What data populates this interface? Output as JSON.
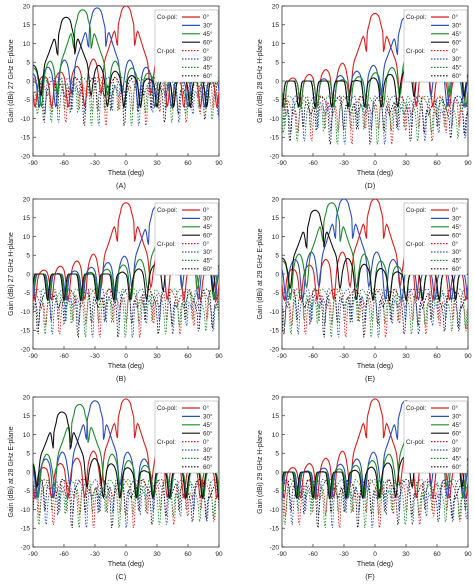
{
  "chart_data": [
    {
      "type": "line",
      "panel_label": "(A)",
      "ylabel": "Gain (dBi) 27 GHz E-plane",
      "xlabel": "Theta (deg)",
      "xlim": [
        -90,
        90
      ],
      "ylim": [
        -20,
        20
      ],
      "xticks": [
        "-90",
        "-60",
        "-30",
        "0",
        "30",
        "60",
        "90"
      ],
      "yticks": [
        "-20",
        "-15",
        "-10",
        "-5",
        "0",
        "5",
        "10",
        "15",
        "20"
      ],
      "legend": {
        "co_label": "Co-pol:",
        "cr_label": "Cr-pol:",
        "entries": [
          "0°",
          "30°",
          "45°",
          "60°"
        ]
      },
      "co_peaks": [
        {
          "x": 0,
          "y": 20
        },
        {
          "x": -28,
          "y": 19.5
        },
        {
          "x": -42,
          "y": 19
        },
        {
          "x": -58,
          "y": 17
        }
      ],
      "cross_level": 0
    },
    {
      "type": "line",
      "panel_label": "(D)",
      "ylabel": "Gain (dBi) 28 GHz H-plane",
      "xlabel": "Theta (deg)",
      "xlim": [
        -90,
        90
      ],
      "ylim": [
        -20,
        20
      ],
      "xticks": [
        "-90",
        "-60",
        "-30",
        "0",
        "30",
        "60",
        "90"
      ],
      "yticks": [
        "-20",
        "-15",
        "-10",
        "-5",
        "0",
        "5",
        "10",
        "15",
        "20"
      ],
      "legend": {
        "co_label": "Co-pol:",
        "cr_label": "Cr-pol:",
        "entries": [
          "0°",
          "30°",
          "45°",
          "60°"
        ]
      },
      "co_peaks": [
        {
          "x": 0,
          "y": 18
        },
        {
          "x": 30,
          "y": 17
        },
        {
          "x": 48,
          "y": 16
        },
        {
          "x": 62,
          "y": 15
        }
      ],
      "cross_level": -5
    },
    {
      "type": "line",
      "panel_label": "(B)",
      "ylabel": "Gain (dBi) 27 GHz H-plane",
      "xlabel": "Theta (deg)",
      "xlim": [
        -90,
        90
      ],
      "ylim": [
        -20,
        20
      ],
      "xticks": [
        "-90",
        "-60",
        "-30",
        "0",
        "30",
        "60",
        "90"
      ],
      "yticks": [
        "-20",
        "-15",
        "-10",
        "-5",
        "0",
        "5",
        "10",
        "15",
        "20"
      ],
      "legend": {
        "co_label": "Co-pol:",
        "cr_label": "Cr-pol:",
        "entries": [
          "0°",
          "30°",
          "45°",
          "60°"
        ]
      },
      "co_peaks": [
        {
          "x": 0,
          "y": 19
        },
        {
          "x": 30,
          "y": 18
        },
        {
          "x": 45,
          "y": 16.5
        },
        {
          "x": 60,
          "y": 14
        }
      ],
      "cross_level": -5
    },
    {
      "type": "line",
      "panel_label": "(E)",
      "ylabel": "Gain (dBi) at 29 GHz E-plane",
      "xlabel": "Theta (deg)",
      "xlim": [
        -90,
        90
      ],
      "ylim": [
        -20,
        20
      ],
      "xticks": [
        "-90",
        "-60",
        "-30",
        "0",
        "30",
        "60",
        "90"
      ],
      "yticks": [
        "-20",
        "-15",
        "-10",
        "-5",
        "0",
        "5",
        "10",
        "15",
        "20"
      ],
      "legend": {
        "co_label": "Co-pol:",
        "cr_label": "Cr-pol:",
        "entries": [
          "0°",
          "30°",
          "45°",
          "60°"
        ]
      },
      "co_peaks": [
        {
          "x": 0,
          "y": 20
        },
        {
          "x": -30,
          "y": 20
        },
        {
          "x": -42,
          "y": 19
        },
        {
          "x": -58,
          "y": 17
        }
      ],
      "cross_level": -5
    },
    {
      "type": "line",
      "panel_label": "(C)",
      "ylabel": "Gain (dBi) at 28 GHz E-plane",
      "xlabel": "Theta (deg)",
      "xlim": [
        -90,
        90
      ],
      "ylim": [
        -20,
        20
      ],
      "xticks": [
        "-90",
        "-60",
        "-30",
        "0",
        "30",
        "60",
        "90"
      ],
      "yticks": [
        "-20",
        "-15",
        "-10",
        "-5",
        "0",
        "5",
        "10",
        "15",
        "20"
      ],
      "legend": {
        "co_label": "Co-pol:",
        "cr_label": "Cr-pol:",
        "entries": [
          "0°",
          "30°",
          "45°",
          "60°"
        ]
      },
      "co_peaks": [
        {
          "x": 0,
          "y": 19.5
        },
        {
          "x": -30,
          "y": 19
        },
        {
          "x": -45,
          "y": 18
        },
        {
          "x": -62,
          "y": 16
        }
      ],
      "cross_level": -3
    },
    {
      "type": "line",
      "panel_label": "(F)",
      "ylabel": "Gain (dBi) 29 GHz H-plane",
      "xlabel": "Theta (deg)",
      "xlim": [
        -90,
        90
      ],
      "ylim": [
        -20,
        20
      ],
      "xticks": [
        "-90",
        "-60",
        "-30",
        "0",
        "30",
        "60",
        "90"
      ],
      "yticks": [
        "-20",
        "-15",
        "-10",
        "-5",
        "0",
        "5",
        "10",
        "15",
        "20"
      ],
      "legend": {
        "co_label": "Co-pol:",
        "cr_label": "Cr-pol:",
        "entries": [
          "0°",
          "30°",
          "45°",
          "60°"
        ]
      },
      "co_peaks": [
        {
          "x": 0,
          "y": 19.5
        },
        {
          "x": 30,
          "y": 19
        },
        {
          "x": 45,
          "y": 18
        },
        {
          "x": 60,
          "y": 16.5
        }
      ],
      "cross_level": -3
    }
  ],
  "colors": {
    "0": "#d62020",
    "30": "#2b4fb8",
    "45": "#1f8a2e",
    "60": "#111111"
  }
}
